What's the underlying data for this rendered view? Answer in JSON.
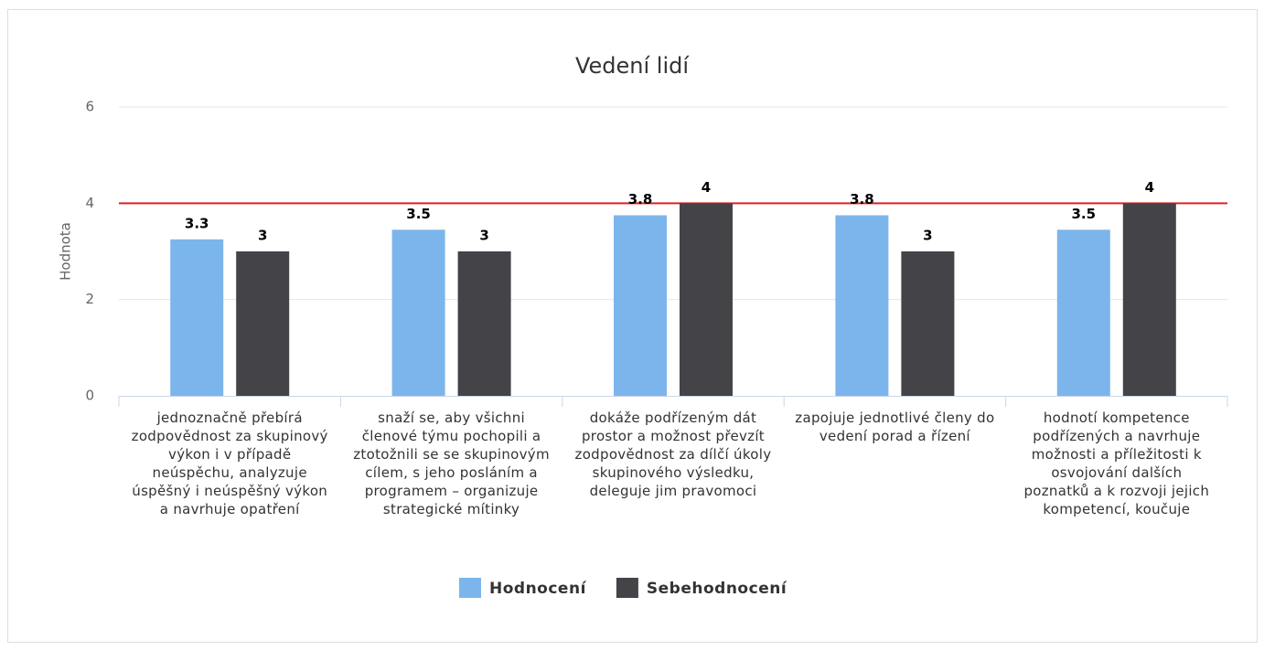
{
  "chart_data": {
    "type": "bar",
    "title": "Vedení lidí",
    "y_axis_label": "Hodnota",
    "categories": [
      "jednoznačně přebírá zodpovědnost za skupinový výkon i v případě neúspěchu, analyzuje úspěšný i neúspěšný výkon a navrhuje opatření",
      "snaží se, aby všichni členové týmu pochopili a ztotožnili se se skupinovým cílem, s jeho posláním a programem – organizuje strategické mítinky",
      "dokáže podřízeným dát prostor a možnost převzít zodpovědnost za dílčí úkoly skupinového výsledku, deleguje jim pravomoci",
      "zapojuje jednotlivé členy do vedení porad a řízení",
      "hodnotí kompetence podřízených a navrhuje možnosti a příležitosti k osvojování dalších poznatků a k rozvoji jejich kompetencí, koučuje"
    ],
    "series": [
      {
        "name": "Hodnocení",
        "color": "#7cb5ec",
        "values": [
          3.25,
          3.45,
          3.75,
          3.75,
          3.45
        ],
        "value_labels": [
          "3.3",
          "3.5",
          "3.8",
          "3.8",
          "3.5"
        ]
      },
      {
        "name": "Sebehodnocení",
        "color": "#434348",
        "values": [
          3,
          3,
          4,
          3,
          4
        ]
      }
    ],
    "ylim": [
      0,
      6
    ],
    "yticks": [
      0,
      2,
      4,
      6
    ],
    "grid": true,
    "plot_line": {
      "value": 4,
      "color": "#e02020"
    },
    "legend": "bottom"
  }
}
